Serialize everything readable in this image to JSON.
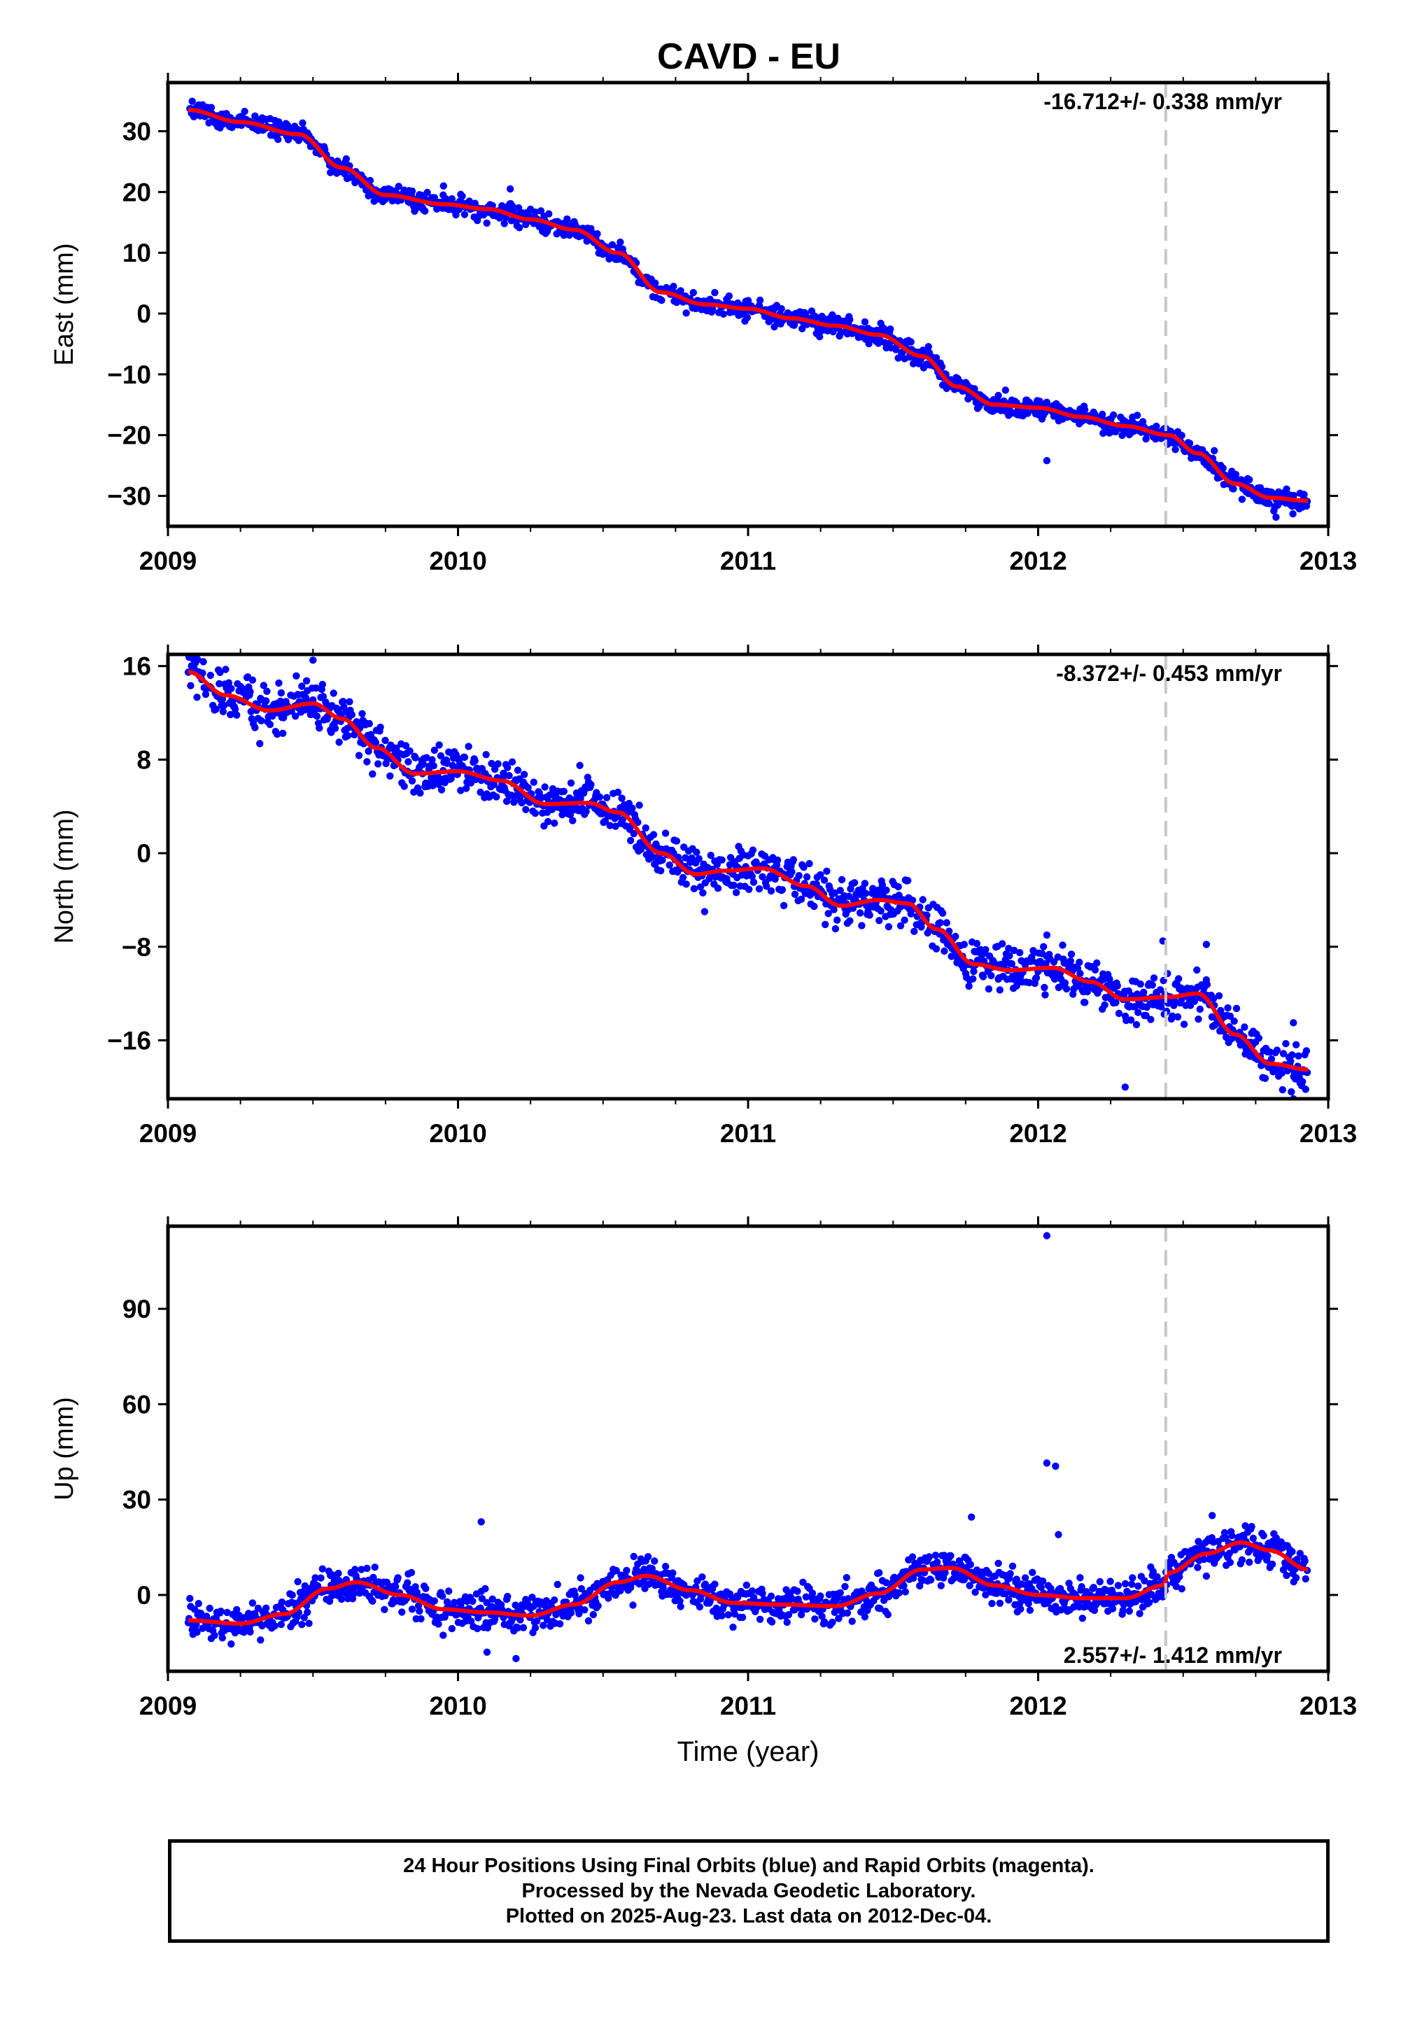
{
  "title": "CAVD - EU",
  "footer": {
    "line1": "24 Hour Positions Using Final Orbits (blue) and Rapid Orbits (magenta).",
    "line2": "Processed by the Nevada Geodetic Laboratory.",
    "line3": "Plotted on 2025-Aug-23. Last data on 2012-Dec-04."
  },
  "colors": {
    "points": "#0000ff",
    "fit": "#ff0000",
    "event_line": "#c8c8c8",
    "frame": "#000000"
  },
  "chart_data": [
    {
      "type": "scatter",
      "component": "East",
      "ylabel": "East (mm)",
      "xlabel": "",
      "xlim": [
        2009,
        2013
      ],
      "ylim": [
        -35,
        38
      ],
      "x_ticks": [
        2009,
        2010,
        2011,
        2012,
        2013
      ],
      "x_tick_labels": [
        "2009",
        "2010",
        "2011",
        "2012",
        "2013"
      ],
      "y_ticks": [
        30,
        20,
        10,
        0,
        -10,
        -20,
        -30
      ],
      "y_tick_labels": [
        "30",
        "20",
        "10",
        "0",
        "−10",
        "−20",
        "−30"
      ],
      "rate_label": "-16.712+/- 0.338 mm/yr",
      "rate_label_position": "top-right",
      "event_line_x": 2012.44,
      "data_range": [
        2009.07,
        2012.93
      ],
      "fit": [
        [
          2009.07,
          33.5
        ],
        [
          2009.25,
          31.5
        ],
        [
          2009.45,
          29.5
        ],
        [
          2009.6,
          24.0
        ],
        [
          2009.75,
          19.5
        ],
        [
          2009.95,
          18.0
        ],
        [
          2010.1,
          17.2
        ],
        [
          2010.25,
          15.5
        ],
        [
          2010.4,
          13.8
        ],
        [
          2010.55,
          10.0
        ],
        [
          2010.7,
          3.5
        ],
        [
          2010.85,
          1.5
        ],
        [
          2011.0,
          0.8
        ],
        [
          2011.15,
          -0.8
        ],
        [
          2011.3,
          -2.0
        ],
        [
          2011.45,
          -3.5
        ],
        [
          2011.6,
          -7.0
        ],
        [
          2011.72,
          -12.0
        ],
        [
          2011.85,
          -15.0
        ],
        [
          2012.0,
          -15.5
        ],
        [
          2012.15,
          -17.0
        ],
        [
          2012.3,
          -18.5
        ],
        [
          2012.45,
          -20.0
        ],
        [
          2012.55,
          -23.0
        ],
        [
          2012.68,
          -28.0
        ],
        [
          2012.8,
          -30.3
        ],
        [
          2012.93,
          -30.8
        ]
      ],
      "noise": 1.3,
      "outliers": [
        [
          2009.95,
          21.0
        ],
        [
          2010.18,
          20.5
        ],
        [
          2012.03,
          -24.2
        ],
        [
          2012.82,
          -33.5
        ]
      ]
    },
    {
      "type": "scatter",
      "component": "North",
      "ylabel": "North (mm)",
      "xlabel": "",
      "xlim": [
        2009,
        2013
      ],
      "ylim": [
        -21,
        17
      ],
      "x_ticks": [
        2009,
        2010,
        2011,
        2012,
        2013
      ],
      "x_tick_labels": [
        "2009",
        "2010",
        "2011",
        "2012",
        "2013"
      ],
      "y_ticks": [
        16,
        8,
        0,
        -8,
        -16
      ],
      "y_tick_labels": [
        "16",
        "8",
        "0",
        "−8",
        "−16"
      ],
      "rate_label": "-8.372+/- 0.453 mm/yr",
      "rate_label_position": "top-right",
      "event_line_x": 2012.44,
      "data_range": [
        2009.07,
        2012.93
      ],
      "fit": [
        [
          2009.07,
          15.5
        ],
        [
          2009.2,
          13.5
        ],
        [
          2009.35,
          12.2
        ],
        [
          2009.5,
          12.8
        ],
        [
          2009.6,
          11.5
        ],
        [
          2009.72,
          9.0
        ],
        [
          2009.85,
          6.8
        ],
        [
          2010.0,
          7.0
        ],
        [
          2010.15,
          6.2
        ],
        [
          2010.3,
          4.2
        ],
        [
          2010.45,
          4.3
        ],
        [
          2010.55,
          3.5
        ],
        [
          2010.7,
          0.0
        ],
        [
          2010.82,
          -1.8
        ],
        [
          2010.92,
          -1.5
        ],
        [
          2011.05,
          -1.3
        ],
        [
          2011.2,
          -2.8
        ],
        [
          2011.32,
          -4.5
        ],
        [
          2011.45,
          -4.0
        ],
        [
          2011.55,
          -4.3
        ],
        [
          2011.65,
          -6.5
        ],
        [
          2011.78,
          -9.5
        ],
        [
          2011.9,
          -10.0
        ],
        [
          2012.05,
          -9.8
        ],
        [
          2012.18,
          -11.0
        ],
        [
          2012.3,
          -12.5
        ],
        [
          2012.45,
          -12.3
        ],
        [
          2012.55,
          -12.0
        ],
        [
          2012.68,
          -15.5
        ],
        [
          2012.8,
          -18.0
        ],
        [
          2012.93,
          -18.5
        ]
      ],
      "noise": 1.5,
      "outliers": [
        [
          2009.5,
          16.5
        ],
        [
          2010.42,
          7.5
        ],
        [
          2010.85,
          -5.0
        ],
        [
          2012.03,
          -7.0
        ],
        [
          2012.3,
          -20.0
        ],
        [
          2012.43,
          -7.5
        ],
        [
          2012.58,
          -7.8
        ],
        [
          2012.88,
          -14.5
        ],
        [
          2012.88,
          -21.0
        ]
      ]
    },
    {
      "type": "scatter",
      "component": "Up",
      "ylabel": "Up (mm)",
      "xlabel": "Time (year)",
      "xlim": [
        2009,
        2013
      ],
      "ylim": [
        -24,
        116
      ],
      "x_ticks": [
        2009,
        2010,
        2011,
        2012,
        2013
      ],
      "x_tick_labels": [
        "2009",
        "2010",
        "2011",
        "2012",
        "2013"
      ],
      "y_ticks": [
        90,
        60,
        30,
        0
      ],
      "y_tick_labels": [
        "90",
        "60",
        "30",
        "0"
      ],
      "rate_label": "2.557+/- 1.412 mm/yr",
      "rate_label_position": "bottom-right",
      "event_line_x": 2012.44,
      "data_range": [
        2009.07,
        2012.93
      ],
      "fit": [
        [
          2009.07,
          -8.0
        ],
        [
          2009.25,
          -9.0
        ],
        [
          2009.4,
          -6.0
        ],
        [
          2009.55,
          2.0
        ],
        [
          2009.65,
          4.0
        ],
        [
          2009.8,
          0.0
        ],
        [
          2009.95,
          -4.5
        ],
        [
          2010.1,
          -5.5
        ],
        [
          2010.25,
          -6.5
        ],
        [
          2010.4,
          -3.0
        ],
        [
          2010.55,
          4.0
        ],
        [
          2010.65,
          6.0
        ],
        [
          2010.8,
          1.5
        ],
        [
          2010.95,
          -2.5
        ],
        [
          2011.1,
          -3.0
        ],
        [
          2011.3,
          -3.5
        ],
        [
          2011.45,
          0.5
        ],
        [
          2011.6,
          8.0
        ],
        [
          2011.7,
          8.5
        ],
        [
          2011.85,
          3.0
        ],
        [
          2012.0,
          0.0
        ],
        [
          2012.15,
          -1.0
        ],
        [
          2012.3,
          -1.0
        ],
        [
          2012.43,
          3.0
        ],
        [
          2012.45,
          7.0
        ],
        [
          2012.58,
          13.0
        ],
        [
          2012.7,
          16.5
        ],
        [
          2012.8,
          14.0
        ],
        [
          2012.93,
          8.0
        ]
      ],
      "noise": 4.5,
      "outliers": [
        [
          2012.03,
          113.0
        ],
        [
          2012.03,
          41.5
        ],
        [
          2012.06,
          40.5
        ],
        [
          2012.07,
          19.0
        ],
        [
          2010.08,
          23.0
        ],
        [
          2011.77,
          24.5
        ],
        [
          2012.6,
          25.0
        ],
        [
          2010.1,
          -18.0
        ],
        [
          2010.2,
          -20.0
        ]
      ]
    }
  ]
}
